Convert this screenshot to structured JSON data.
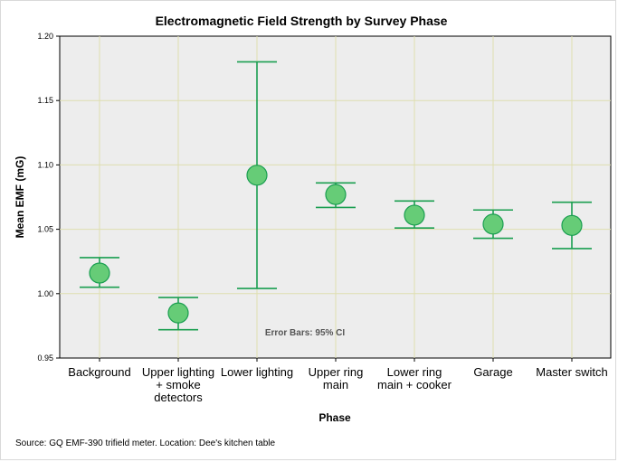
{
  "chart_data": {
    "type": "errorbar",
    "title": "Electromagnetic Field Strength by Survey Phase",
    "xlabel": "Phase",
    "ylabel": "Mean EMF (mG)",
    "ylim": [
      0.95,
      1.2
    ],
    "yticks": [
      "0.95",
      "1.00",
      "1.05",
      "1.10",
      "1.15",
      "1.20"
    ],
    "grid": true,
    "categories": [
      [
        "Background"
      ],
      [
        "Upper lighting",
        "+ smoke",
        "detectors"
      ],
      [
        "Lower lighting"
      ],
      [
        "Upper ring",
        "main"
      ],
      [
        "Lower ring",
        "main + cooker"
      ],
      [
        "Garage"
      ],
      [
        "Master switch"
      ]
    ],
    "means": [
      1.016,
      0.985,
      1.092,
      1.077,
      1.061,
      1.054,
      1.053
    ],
    "lower": [
      1.005,
      0.972,
      1.004,
      1.067,
      1.051,
      1.043,
      1.035
    ],
    "upper": [
      1.028,
      0.997,
      1.18,
      1.086,
      1.072,
      1.065,
      1.071
    ],
    "annotation": "Error Bars: 95% CI",
    "source": "Source: GQ EMF-390 trifield meter. Location: Dee's kitchen table",
    "colors": {
      "plot_bg": "#ededed",
      "grid": "#dedeb0",
      "marker_fill": "#66cc77",
      "marker_stroke": "#1a9e50",
      "errorbar": "#1a9e50"
    }
  }
}
